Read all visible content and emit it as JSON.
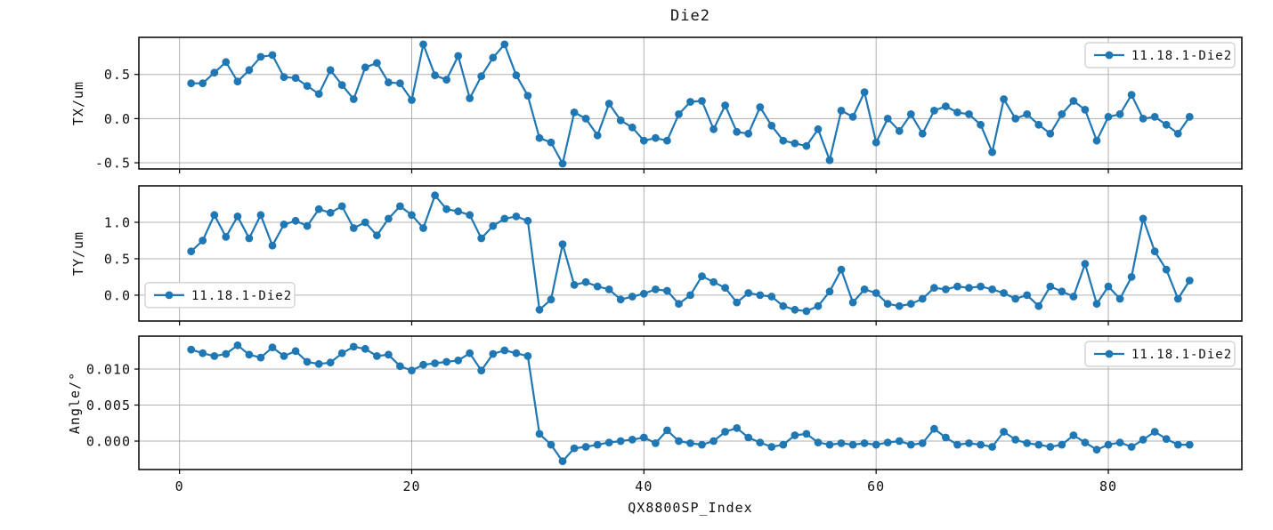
{
  "figure": {
    "title": "Die2",
    "xlabel": "QX8800SP_Index",
    "series_label": "11.18.1-Die2",
    "line_color": "#1f77b4",
    "grid_color": "#b0b0b0",
    "spine_color": "#000000",
    "legend_border_color": "#cccccc",
    "background": "#ffffff",
    "x_ticks": [
      0,
      20,
      40,
      60,
      80
    ],
    "x_tick_labels": [
      "0",
      "20",
      "40",
      "60",
      "80"
    ]
  },
  "chart_data": [
    {
      "type": "line",
      "name": "TX",
      "ylabel": "TX/um",
      "xlabel": "QX8800SP_Index",
      "legend": {
        "label": "11.18.1-Die2",
        "position": "top-right"
      },
      "xlim": [
        -3.5,
        91.5
      ],
      "ylim": [
        -0.57,
        0.92
      ],
      "y_ticks": [
        {
          "label": "0.5",
          "value": 0.5
        },
        {
          "label": "0.0",
          "value": 0.0
        },
        {
          "label": "-0.5",
          "value": -0.5
        }
      ],
      "x": [
        1,
        2,
        3,
        4,
        5,
        6,
        7,
        8,
        9,
        10,
        11,
        12,
        13,
        14,
        15,
        16,
        17,
        18,
        19,
        20,
        21,
        22,
        23,
        24,
        25,
        26,
        27,
        28,
        29,
        30,
        31,
        32,
        33,
        34,
        35,
        36,
        37,
        38,
        39,
        40,
        41,
        42,
        43,
        44,
        45,
        46,
        47,
        48,
        49,
        50,
        51,
        52,
        53,
        54,
        55,
        56,
        57,
        58,
        59,
        60,
        61,
        62,
        63,
        64,
        65,
        66,
        67,
        68,
        69,
        70,
        71,
        72,
        73,
        74,
        75,
        76,
        77,
        78,
        79,
        80,
        81,
        82,
        83,
        84,
        85,
        86,
        87
      ],
      "values": [
        0.4,
        0.4,
        0.52,
        0.64,
        0.42,
        0.55,
        0.7,
        0.72,
        0.47,
        0.46,
        0.37,
        0.28,
        0.55,
        0.38,
        0.22,
        0.58,
        0.63,
        0.41,
        0.4,
        0.21,
        0.84,
        0.49,
        0.44,
        0.71,
        0.23,
        0.48,
        0.69,
        0.84,
        0.49,
        0.26,
        -0.22,
        -0.27,
        -0.51,
        0.07,
        0.0,
        -0.19,
        0.17,
        -0.02,
        -0.1,
        -0.25,
        -0.22,
        -0.25,
        0.05,
        0.19,
        0.2,
        -0.12,
        0.15,
        -0.15,
        -0.17,
        0.13,
        -0.08,
        -0.25,
        -0.28,
        -0.31,
        -0.12,
        -0.47,
        0.09,
        0.02,
        0.3,
        -0.27,
        0.0,
        -0.14,
        0.05,
        -0.17,
        0.09,
        0.14,
        0.07,
        0.05,
        -0.07,
        -0.38,
        0.22,
        0.0,
        0.05,
        -0.07,
        -0.17,
        0.05,
        0.2,
        0.1,
        -0.25,
        0.02,
        0.05,
        0.27,
        0.0,
        0.02,
        -0.07,
        -0.17,
        0.02
      ]
    },
    {
      "type": "line",
      "name": "TY",
      "ylabel": "TY/um",
      "xlabel": "QX8800SP_Index",
      "legend": {
        "label": "11.18.1-Die2",
        "position": "center-left"
      },
      "xlim": [
        -3.5,
        91.5
      ],
      "ylim": [
        -0.355,
        1.5
      ],
      "y_ticks": [
        {
          "label": "1.0",
          "value": 1.0
        },
        {
          "label": "0.5",
          "value": 0.5
        },
        {
          "label": "0.0",
          "value": 0.0
        }
      ],
      "x": [
        1,
        2,
        3,
        4,
        5,
        6,
        7,
        8,
        9,
        10,
        11,
        12,
        13,
        14,
        15,
        16,
        17,
        18,
        19,
        20,
        21,
        22,
        23,
        24,
        25,
        26,
        27,
        28,
        29,
        30,
        31,
        32,
        33,
        34,
        35,
        36,
        37,
        38,
        39,
        40,
        41,
        42,
        43,
        44,
        45,
        46,
        47,
        48,
        49,
        50,
        51,
        52,
        53,
        54,
        55,
        56,
        57,
        58,
        59,
        60,
        61,
        62,
        63,
        64,
        65,
        66,
        67,
        68,
        69,
        70,
        71,
        72,
        73,
        74,
        75,
        76,
        77,
        78,
        79,
        80,
        81,
        82,
        83,
        84,
        85,
        86,
        87
      ],
      "values": [
        0.6,
        0.75,
        1.1,
        0.8,
        1.08,
        0.78,
        1.1,
        0.68,
        0.97,
        1.02,
        0.95,
        1.18,
        1.13,
        1.22,
        0.92,
        1.0,
        0.82,
        1.05,
        1.22,
        1.1,
        0.92,
        1.37,
        1.18,
        1.15,
        1.1,
        0.78,
        0.95,
        1.05,
        1.08,
        1.02,
        -0.2,
        -0.06,
        0.7,
        0.14,
        0.18,
        0.12,
        0.08,
        -0.06,
        -0.02,
        0.02,
        0.08,
        0.06,
        -0.12,
        0.0,
        0.26,
        0.18,
        0.1,
        -0.1,
        0.03,
        0.0,
        -0.02,
        -0.15,
        -0.2,
        -0.22,
        -0.15,
        0.05,
        0.35,
        -0.1,
        0.08,
        0.03,
        -0.12,
        -0.15,
        -0.12,
        -0.05,
        0.1,
        0.08,
        0.12,
        0.1,
        0.12,
        0.08,
        0.03,
        -0.05,
        0.0,
        -0.15,
        0.12,
        0.05,
        -0.02,
        0.43,
        -0.12,
        0.12,
        -0.05,
        0.25,
        1.05,
        0.6,
        0.35,
        -0.05,
        0.2
      ]
    },
    {
      "type": "line",
      "name": "Angle",
      "ylabel": "Angle/°",
      "xlabel": "QX8800SP_Index",
      "legend": {
        "label": "11.18.1-Die2",
        "position": "top-right"
      },
      "xlim": [
        -3.5,
        91.5
      ],
      "ylim": [
        -0.00395,
        0.01457
      ],
      "y_ticks": [
        {
          "label": "0.010",
          "value": 0.01
        },
        {
          "label": "0.005",
          "value": 0.005
        },
        {
          "label": "0.000",
          "value": 0.0
        }
      ],
      "x": [
        1,
        2,
        3,
        4,
        5,
        6,
        7,
        8,
        9,
        10,
        11,
        12,
        13,
        14,
        15,
        16,
        17,
        18,
        19,
        20,
        21,
        22,
        23,
        24,
        25,
        26,
        27,
        28,
        29,
        30,
        31,
        32,
        33,
        34,
        35,
        36,
        37,
        38,
        39,
        40,
        41,
        42,
        43,
        44,
        45,
        46,
        47,
        48,
        49,
        50,
        51,
        52,
        53,
        54,
        55,
        56,
        57,
        58,
        59,
        60,
        61,
        62,
        63,
        64,
        65,
        66,
        67,
        68,
        69,
        70,
        71,
        72,
        73,
        74,
        75,
        76,
        77,
        78,
        79,
        80,
        81,
        82,
        83,
        84,
        85,
        86,
        87
      ],
      "values": [
        0.0127,
        0.0122,
        0.0118,
        0.0121,
        0.0133,
        0.012,
        0.0116,
        0.013,
        0.0118,
        0.0125,
        0.011,
        0.0107,
        0.0109,
        0.0122,
        0.0131,
        0.0128,
        0.0118,
        0.012,
        0.0104,
        0.0098,
        0.0106,
        0.0108,
        0.011,
        0.0112,
        0.0122,
        0.0098,
        0.0121,
        0.0126,
        0.0122,
        0.0118,
        0.001,
        -0.0005,
        -0.0028,
        -0.001,
        -0.0008,
        -0.0005,
        -0.0002,
        0.0,
        0.0002,
        0.0005,
        -0.0003,
        0.0015,
        0.0,
        -0.0003,
        -0.0005,
        0.0,
        0.0013,
        0.0018,
        0.0005,
        -0.0002,
        -0.0008,
        -0.0005,
        0.0008,
        0.001,
        -0.0002,
        -0.0005,
        -0.0003,
        -0.0005,
        -0.0003,
        -0.0005,
        -0.0002,
        0.0,
        -0.0005,
        -0.0003,
        0.0017,
        0.0005,
        -0.0005,
        -0.0003,
        -0.0005,
        -0.0008,
        0.0013,
        0.0002,
        -0.0003,
        -0.0005,
        -0.0008,
        -0.0005,
        0.0008,
        -0.0002,
        -0.0012,
        -0.0005,
        -0.0002,
        -0.0008,
        0.0002,
        0.0013,
        0.0003,
        -0.0005,
        -0.0005
      ]
    }
  ]
}
